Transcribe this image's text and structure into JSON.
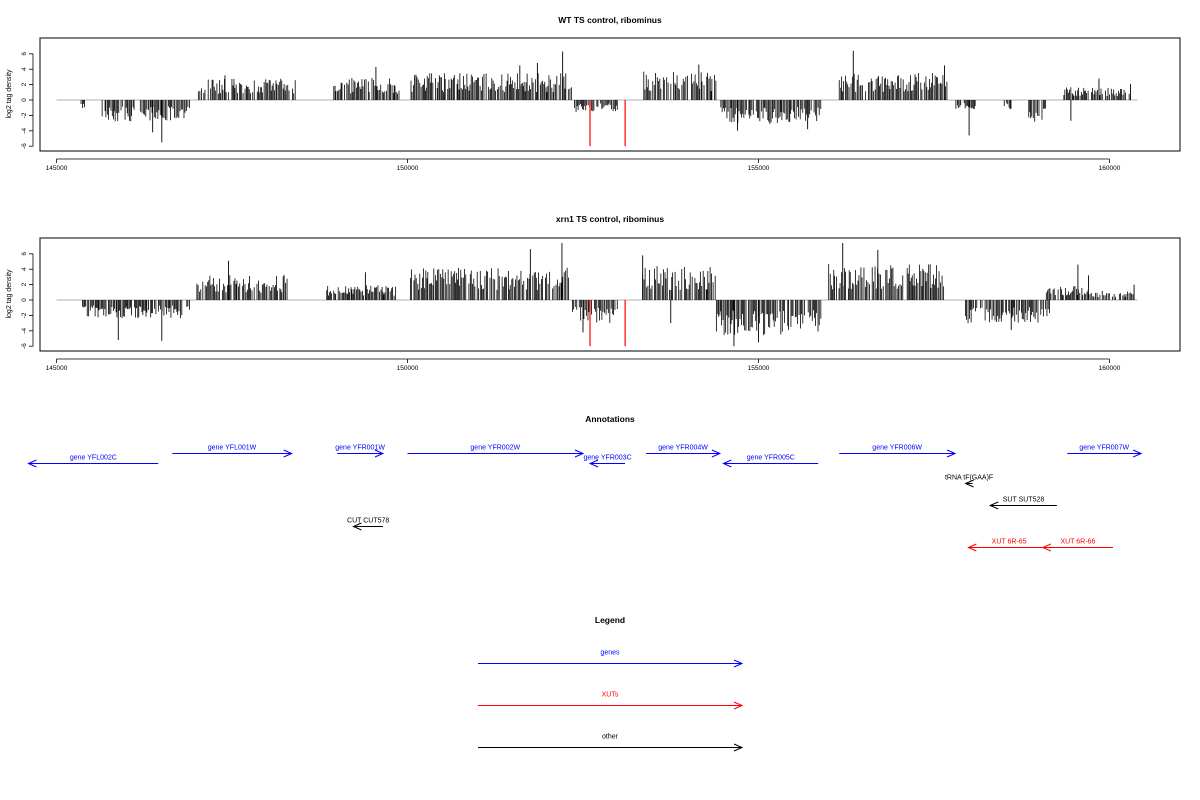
{
  "chart_data": [
    {
      "type": "bar",
      "title": "WT TS control, ribominus",
      "ylabel": "log2 tag density",
      "xlim": [
        145000,
        160400
      ],
      "ylim": [
        -6,
        7
      ],
      "x_ticks": [
        145000,
        150000,
        155000,
        160000
      ],
      "y_ticks": [
        6,
        4,
        2,
        0,
        -2,
        -4,
        -6
      ],
      "baseline_color": "#999999",
      "bar_color": "#000000",
      "highlight_color": "#ff0000",
      "segments": [
        {
          "start": 145350,
          "end": 145430,
          "sign": -1,
          "level": 1.0,
          "peaks": []
        },
        {
          "start": 145650,
          "end": 146900,
          "sign": -1,
          "level": 2.3,
          "peaks": [
            {
              "x": 146500,
              "y": -5.5
            },
            {
              "x": 146370,
              "y": -4.2
            }
          ]
        },
        {
          "start": 147000,
          "end": 148400,
          "sign": 1,
          "level": 2.3,
          "peaks": [
            {
              "x": 147400,
              "y": 3.2
            }
          ]
        },
        {
          "start": 148950,
          "end": 149900,
          "sign": 1,
          "level": 2.4,
          "peaks": [
            {
              "x": 149550,
              "y": 4.3
            }
          ]
        },
        {
          "start": 150050,
          "end": 152350,
          "sign": 1,
          "level": 2.9,
          "peaks": [
            {
              "x": 152210,
              "y": 6.3
            },
            {
              "x": 151850,
              "y": 4.8
            },
            {
              "x": 151600,
              "y": 4.5
            }
          ]
        },
        {
          "start": 152380,
          "end": 153000,
          "sign": -1,
          "level": 1.3,
          "peaks": []
        },
        {
          "start": 153350,
          "end": 154400,
          "sign": 1,
          "level": 3.2,
          "peaks": [
            {
              "x": 154150,
              "y": 4.6
            }
          ]
        },
        {
          "start": 154450,
          "end": 155900,
          "sign": -1,
          "level": 2.6,
          "peaks": [
            {
              "x": 154700,
              "y": -4.0
            },
            {
              "x": 155700,
              "y": -3.8
            }
          ]
        },
        {
          "start": 156150,
          "end": 157700,
          "sign": 1,
          "level": 3.0,
          "peaks": [
            {
              "x": 156350,
              "y": 6.4
            },
            {
              "x": 157650,
              "y": 4.5
            }
          ]
        },
        {
          "start": 157800,
          "end": 158100,
          "sign": -1,
          "level": 1.0,
          "peaks": [
            {
              "x": 158000,
              "y": -4.6
            }
          ]
        },
        {
          "start": 158500,
          "end": 158600,
          "sign": -1,
          "level": 1.0,
          "peaks": []
        },
        {
          "start": 158850,
          "end": 159100,
          "sign": -1,
          "level": 2.4,
          "peaks": []
        },
        {
          "start": 159350,
          "end": 160300,
          "sign": 1,
          "level": 1.4,
          "peaks": [
            {
              "x": 159450,
              "y": -2.7
            },
            {
              "x": 159850,
              "y": 2.8
            },
            {
              "x": 160300,
              "y": 2.1
            }
          ]
        }
      ],
      "highlights": [
        {
          "x": 152600,
          "y": -6.0
        },
        {
          "x": 153100,
          "y": -6.0
        }
      ]
    },
    {
      "type": "bar",
      "title": "xrn1 TS control, ribominus",
      "ylabel": "log2 tag density",
      "xlim": [
        145000,
        160400
      ],
      "ylim": [
        -6,
        7
      ],
      "x_ticks": [
        145000,
        150000,
        155000,
        160000
      ],
      "y_ticks": [
        6,
        4,
        2,
        0,
        -2,
        -4,
        -6
      ],
      "baseline_color": "#999999",
      "bar_color": "#000000",
      "highlight_color": "#ff0000",
      "segments": [
        {
          "start": 145350,
          "end": 146900,
          "sign": -1,
          "level": 2.0,
          "peaks": [
            {
              "x": 145880,
              "y": -5.2
            },
            {
              "x": 146500,
              "y": -5.3
            }
          ]
        },
        {
          "start": 147000,
          "end": 148300,
          "sign": 1,
          "level": 2.7,
          "peaks": [
            {
              "x": 147450,
              "y": 5.1
            }
          ]
        },
        {
          "start": 148850,
          "end": 149850,
          "sign": 1,
          "level": 1.6,
          "peaks": [
            {
              "x": 149400,
              "y": 3.6
            }
          ]
        },
        {
          "start": 150000,
          "end": 152300,
          "sign": 1,
          "level": 3.5,
          "peaks": [
            {
              "x": 152200,
              "y": 7.4
            },
            {
              "x": 151750,
              "y": 6.6
            }
          ]
        },
        {
          "start": 152350,
          "end": 153000,
          "sign": -1,
          "level": 2.5,
          "peaks": [
            {
              "x": 152500,
              "y": -4.2
            }
          ]
        },
        {
          "start": 153350,
          "end": 154400,
          "sign": 1,
          "level": 3.7,
          "peaks": [
            {
              "x": 153350,
              "y": 5.8
            },
            {
              "x": 153750,
              "y": -3.0
            }
          ]
        },
        {
          "start": 154400,
          "end": 155900,
          "sign": -1,
          "level": 3.8,
          "peaks": [
            {
              "x": 154650,
              "y": -6.0
            },
            {
              "x": 155000,
              "y": -5.5
            }
          ]
        },
        {
          "start": 156000,
          "end": 157650,
          "sign": 1,
          "level": 4.0,
          "peaks": [
            {
              "x": 156200,
              "y": 7.4
            },
            {
              "x": 156700,
              "y": 6.5
            }
          ]
        },
        {
          "start": 157950,
          "end": 159150,
          "sign": -1,
          "level": 2.5,
          "peaks": [
            {
              "x": 158600,
              "y": -3.9
            }
          ]
        },
        {
          "start": 159100,
          "end": 159700,
          "sign": 1,
          "level": 1.6,
          "peaks": [
            {
              "x": 159550,
              "y": 4.6
            },
            {
              "x": 159700,
              "y": 3.2
            }
          ]
        },
        {
          "start": 159700,
          "end": 160350,
          "sign": 1,
          "level": 1.0,
          "peaks": [
            {
              "x": 160350,
              "y": 2.0
            }
          ]
        }
      ],
      "highlights": [
        {
          "x": 152600,
          "y": -6.0
        },
        {
          "x": 153100,
          "y": -6.0
        }
      ]
    }
  ],
  "annotations": {
    "title": "Annotations",
    "features": [
      {
        "label": "gene YFL002C",
        "start": 144600,
        "end": 146450,
        "strand": "-",
        "row": 1,
        "color": "#0000ff"
      },
      {
        "label": "gene YFL001W",
        "start": 146650,
        "end": 148350,
        "strand": "+",
        "row": 0,
        "color": "#0000ff"
      },
      {
        "label": "gene YFR001W",
        "start": 149000,
        "end": 149650,
        "strand": "+",
        "row": 0,
        "color": "#0000ff"
      },
      {
        "label": "gene YFR002W",
        "start": 150000,
        "end": 152500,
        "strand": "+",
        "row": 0,
        "color": "#0000ff"
      },
      {
        "label": "gene YFR003C",
        "start": 152600,
        "end": 153100,
        "strand": "-",
        "row": 1,
        "color": "#0000ff"
      },
      {
        "label": "gene YFR004W",
        "start": 153400,
        "end": 154450,
        "strand": "+",
        "row": 0,
        "color": "#0000ff"
      },
      {
        "label": "gene YFR005C",
        "start": 154500,
        "end": 155850,
        "strand": "-",
        "row": 1,
        "color": "#0000ff"
      },
      {
        "label": "gene YFR006W",
        "start": 156150,
        "end": 157800,
        "strand": "+",
        "row": 0,
        "color": "#0000ff"
      },
      {
        "label": "gene YFR007W",
        "start": 159400,
        "end": 160450,
        "strand": "+",
        "row": 0,
        "color": "#0000ff"
      },
      {
        "label": "tRNA tF(GAA)F",
        "start": 157950,
        "end": 158050,
        "strand": "-",
        "row": 2,
        "color": "#000000"
      },
      {
        "label": "SUT SUT528",
        "start": 158300,
        "end": 159250,
        "strand": "-",
        "row": 3,
        "color": "#000000"
      },
      {
        "label": "CUT CUT578",
        "start": 149230,
        "end": 149650,
        "strand": "-",
        "row": 4,
        "color": "#000000"
      },
      {
        "label": "XUT 6R-65",
        "start": 157990,
        "end": 159150,
        "strand": "-",
        "row": 5,
        "color": "#ff0000"
      },
      {
        "label": "XUT 6R-66",
        "start": 159050,
        "end": 160050,
        "strand": "-",
        "row": 5,
        "color": "#ff0000"
      }
    ]
  },
  "legend": {
    "title": "Legend",
    "items": [
      {
        "label": "genes",
        "color": "#0000ff"
      },
      {
        "label": "XUTs",
        "color": "#ff0000"
      },
      {
        "label": "other",
        "color": "#000000"
      }
    ]
  }
}
